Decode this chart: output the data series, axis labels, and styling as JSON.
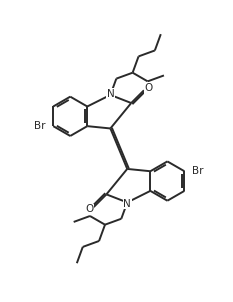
{
  "bg_color": "#ffffff",
  "line_color": "#2a2a2a",
  "line_width": 1.4,
  "figsize": [
    2.33,
    3.02
  ],
  "dpi": 100,
  "xlim": [
    0,
    10
  ],
  "ylim": [
    0,
    13
  ]
}
